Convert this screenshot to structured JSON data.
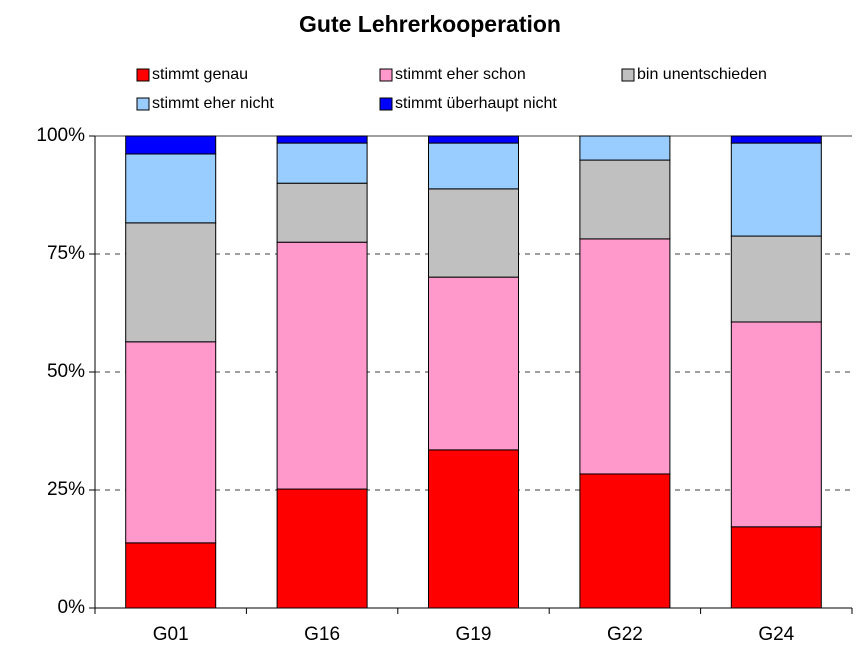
{
  "chart_data": {
    "type": "stacked_bar",
    "title": "Gute Lehrerkooperation",
    "categories": [
      "G01",
      "G16",
      "G19",
      "G22",
      "G24"
    ],
    "series": [
      {
        "name": "stimmt genau",
        "color": "#ff0000",
        "values": [
          13.8,
          25.2,
          33.5,
          28.4,
          17.2
        ]
      },
      {
        "name": "stimmt eher schon",
        "color": "#ff99cc",
        "values": [
          42.6,
          52.3,
          36.6,
          49.8,
          43.4
        ]
      },
      {
        "name": "bin unentschieden",
        "color": "#c0c0c0",
        "values": [
          25.2,
          12.5,
          18.7,
          16.7,
          18.2
        ]
      },
      {
        "name": "stimmt eher nicht",
        "color": "#99ccff",
        "values": [
          14.6,
          8.5,
          9.7,
          5.1,
          19.7
        ]
      },
      {
        "name": "stimmt überhaupt nicht",
        "color": "#0000ff",
        "values": [
          3.8,
          1.5,
          1.5,
          0,
          1.5
        ]
      }
    ],
    "ylim": [
      0,
      100
    ],
    "yticks": [
      {
        "value": 0,
        "label": "0%"
      },
      {
        "value": 25,
        "label": "25%"
      },
      {
        "value": 50,
        "label": "50%"
      },
      {
        "value": 75,
        "label": "75%"
      },
      {
        "value": 100,
        "label": "100%"
      }
    ],
    "grid": true
  }
}
